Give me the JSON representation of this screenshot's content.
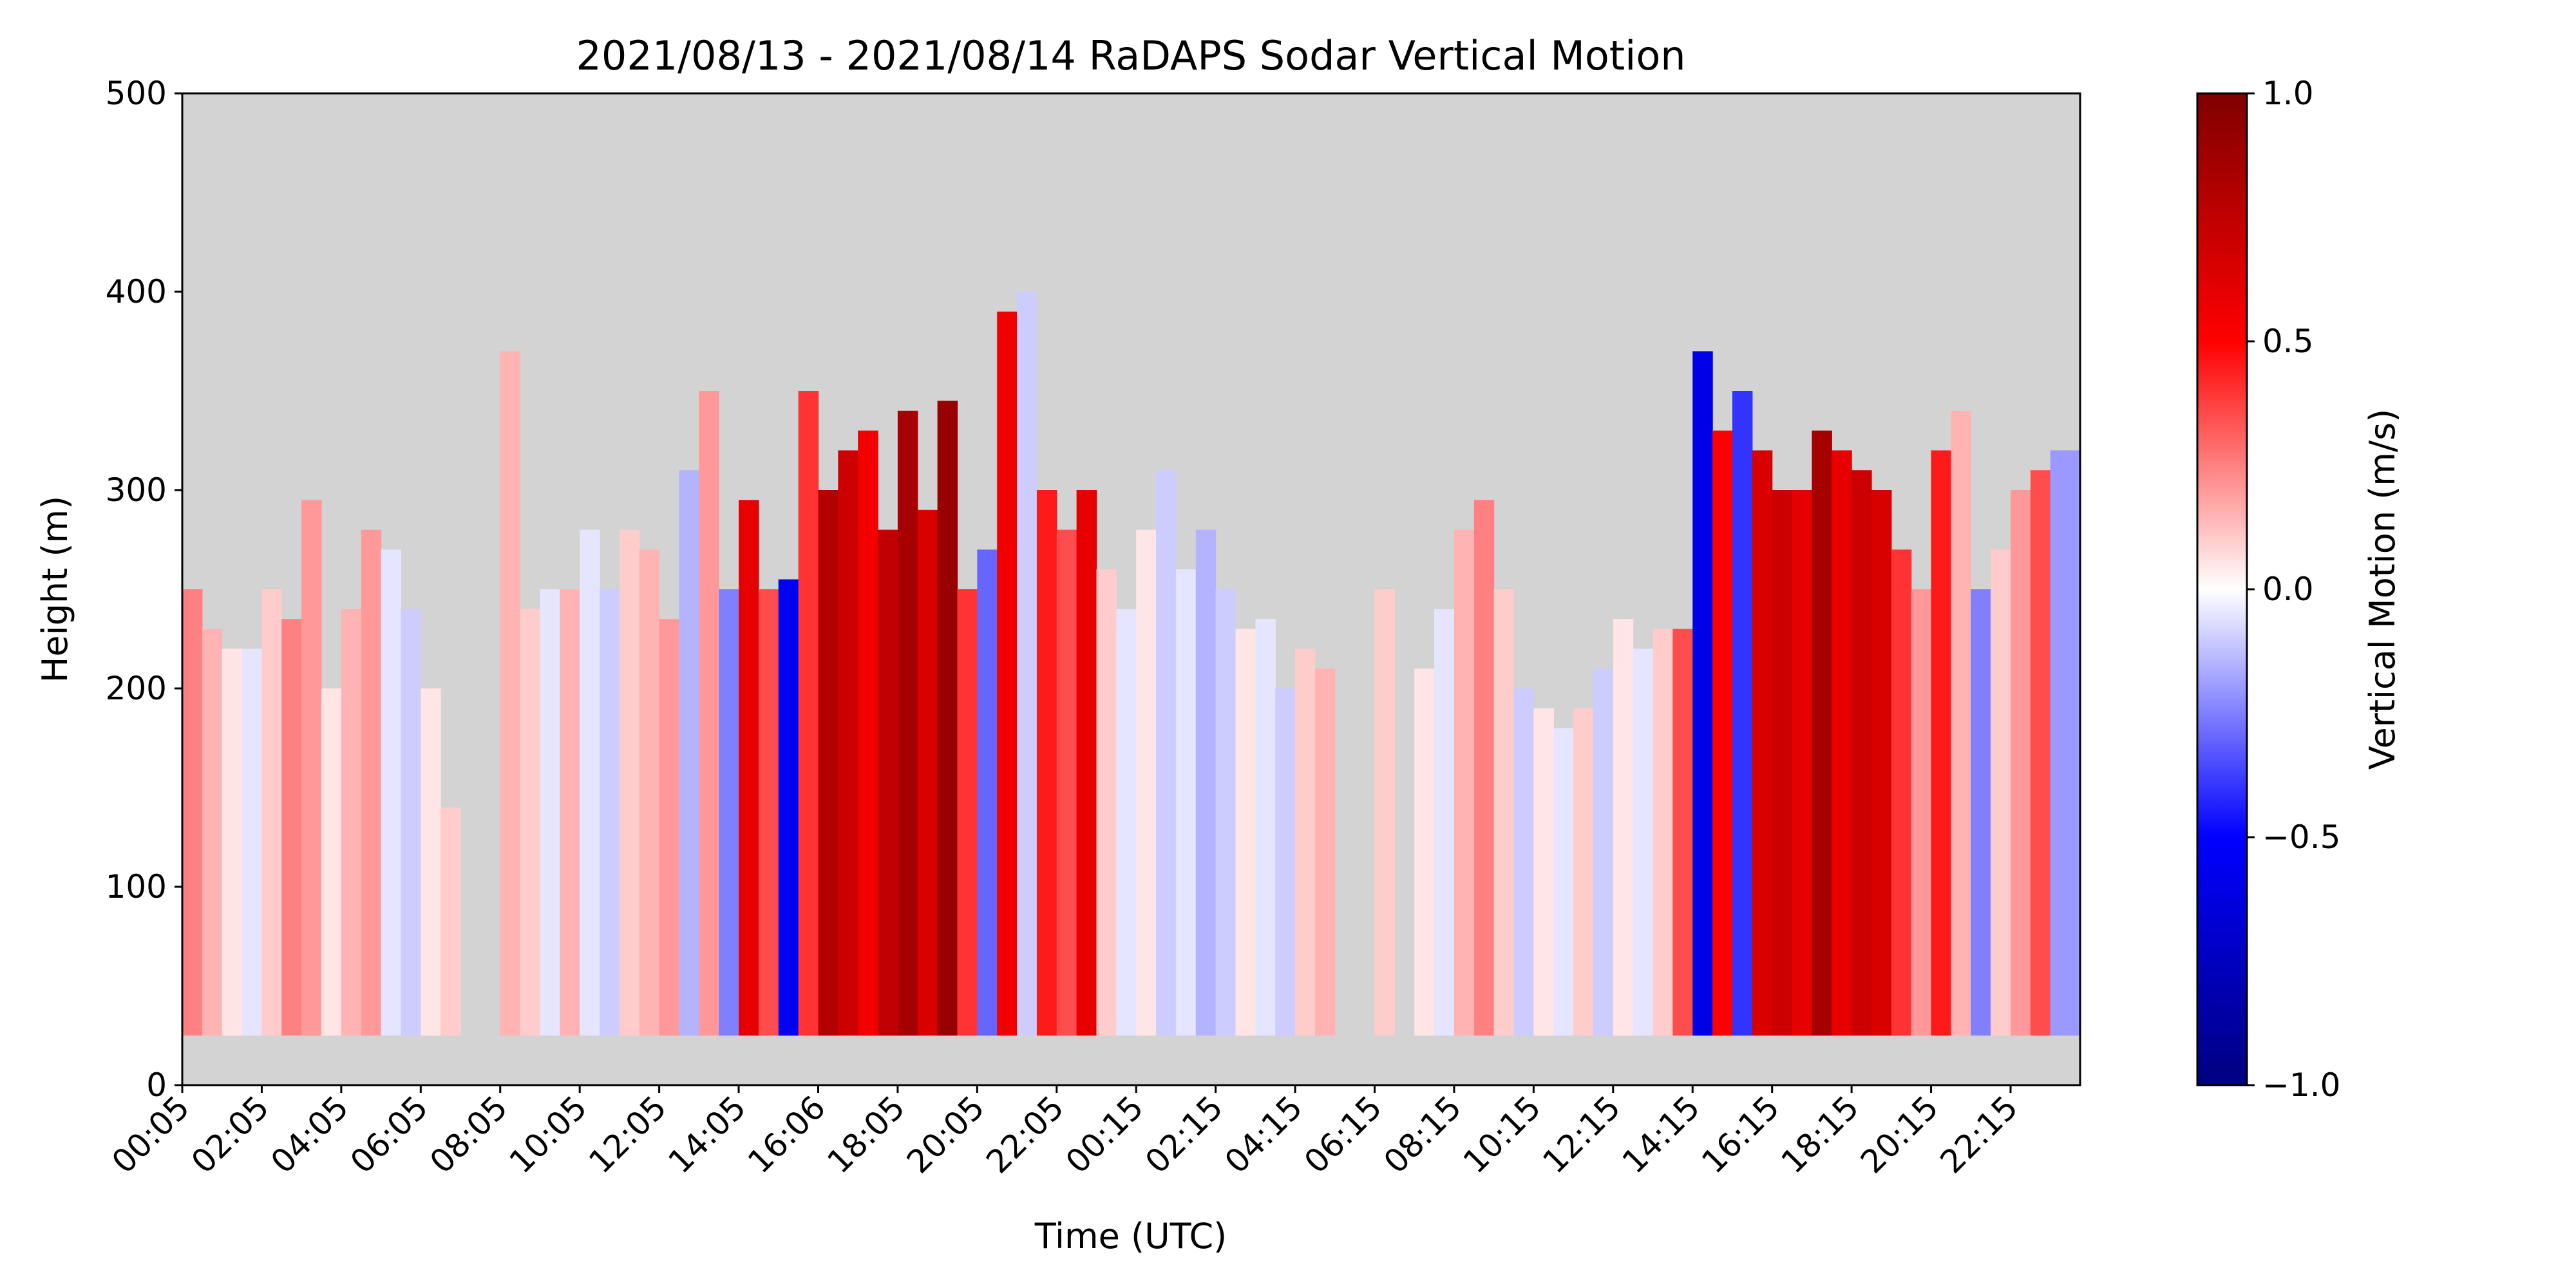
{
  "chart_data": {
    "type": "heatmap",
    "title": "2021/08/13 - 2021/08/14 RaDAPS Sodar Vertical Motion",
    "xlabel": "Time (UTC)",
    "ylabel": "Height (m)",
    "x_ticks": [
      "00:05",
      "02:05",
      "04:05",
      "06:05",
      "08:05",
      "10:05",
      "12:05",
      "14:05",
      "16:06",
      "18:05",
      "20:05",
      "22:05",
      "00:15",
      "02:15",
      "04:15",
      "06:15",
      "08:15",
      "10:15",
      "12:15",
      "14:15",
      "16:15",
      "18:15",
      "20:15",
      "22:15"
    ],
    "x_range_hours": [
      0,
      47.75
    ],
    "ylim": [
      0,
      500
    ],
    "y_ticks": [
      0,
      100,
      200,
      300,
      400,
      500
    ],
    "colorbar": {
      "label": "Vertical Motion (m/s)",
      "range": [
        -1.0,
        1.0
      ],
      "ticks": [
        "1.0",
        "0.5",
        "0.0",
        "−0.5",
        "−1.0"
      ],
      "tick_values": [
        1.0,
        0.5,
        0.0,
        -0.5,
        -1.0
      ],
      "colormap": "seismic"
    },
    "missing_color": "#d3d3d3",
    "data_bottom_height": 25,
    "profiles": [
      {
        "start": 0.0,
        "end": 0.5,
        "top": 250,
        "v": 0.25
      },
      {
        "start": 0.5,
        "end": 1.0,
        "top": 230,
        "v": 0.15
      },
      {
        "start": 1.0,
        "end": 1.5,
        "top": 220,
        "v": 0.05
      },
      {
        "start": 1.5,
        "end": 2.0,
        "top": 220,
        "v": -0.05
      },
      {
        "start": 2.0,
        "end": 2.5,
        "top": 250,
        "v": 0.1
      },
      {
        "start": 2.5,
        "end": 3.0,
        "top": 235,
        "v": 0.25
      },
      {
        "start": 3.0,
        "end": 3.5,
        "top": 295,
        "v": 0.2
      },
      {
        "start": 3.5,
        "end": 4.0,
        "top": 200,
        "v": 0.05
      },
      {
        "start": 4.0,
        "end": 4.5,
        "top": 240,
        "v": 0.15
      },
      {
        "start": 4.5,
        "end": 5.0,
        "top": 280,
        "v": 0.2
      },
      {
        "start": 5.0,
        "end": 5.5,
        "top": 270,
        "v": -0.05
      },
      {
        "start": 5.5,
        "end": 6.0,
        "top": 240,
        "v": -0.1
      },
      {
        "start": 6.0,
        "end": 6.5,
        "top": 200,
        "v": 0.05
      },
      {
        "start": 6.5,
        "end": 7.0,
        "top": 140,
        "v": 0.1
      },
      {
        "start": 8.0,
        "end": 8.5,
        "top": 370,
        "v": 0.15
      },
      {
        "start": 8.5,
        "end": 9.0,
        "top": 240,
        "v": 0.1
      },
      {
        "start": 9.0,
        "end": 9.5,
        "top": 250,
        "v": -0.05
      },
      {
        "start": 9.5,
        "end": 10.0,
        "top": 250,
        "v": 0.15
      },
      {
        "start": 10.0,
        "end": 10.5,
        "top": 280,
        "v": -0.05
      },
      {
        "start": 10.5,
        "end": 11.0,
        "top": 250,
        "v": -0.1
      },
      {
        "start": 11.0,
        "end": 11.5,
        "top": 280,
        "v": 0.1
      },
      {
        "start": 11.5,
        "end": 12.0,
        "top": 270,
        "v": 0.15
      },
      {
        "start": 12.0,
        "end": 12.5,
        "top": 235,
        "v": 0.2
      },
      {
        "start": 12.5,
        "end": 13.0,
        "top": 310,
        "v": -0.15
      },
      {
        "start": 13.0,
        "end": 13.5,
        "top": 350,
        "v": 0.2
      },
      {
        "start": 13.5,
        "end": 14.0,
        "top": 250,
        "v": -0.25
      },
      {
        "start": 14.0,
        "end": 14.5,
        "top": 295,
        "v": 0.6
      },
      {
        "start": 14.5,
        "end": 15.0,
        "top": 250,
        "v": 0.35
      },
      {
        "start": 15.0,
        "end": 15.5,
        "top": 255,
        "v": -0.55
      },
      {
        "start": 15.5,
        "end": 16.0,
        "top": 350,
        "v": 0.4
      },
      {
        "start": 16.0,
        "end": 16.5,
        "top": 300,
        "v": 0.8
      },
      {
        "start": 16.5,
        "end": 17.0,
        "top": 320,
        "v": 0.7
      },
      {
        "start": 17.0,
        "end": 17.5,
        "top": 330,
        "v": 0.55
      },
      {
        "start": 17.5,
        "end": 18.0,
        "top": 280,
        "v": 0.75
      },
      {
        "start": 18.0,
        "end": 18.5,
        "top": 340,
        "v": 0.85
      },
      {
        "start": 18.5,
        "end": 19.0,
        "top": 290,
        "v": 0.65
      },
      {
        "start": 19.0,
        "end": 19.5,
        "top": 345,
        "v": 0.9
      },
      {
        "start": 19.5,
        "end": 20.0,
        "top": 250,
        "v": 0.4
      },
      {
        "start": 20.0,
        "end": 20.5,
        "top": 270,
        "v": -0.3
      },
      {
        "start": 20.5,
        "end": 21.0,
        "top": 390,
        "v": 0.55
      },
      {
        "start": 21.0,
        "end": 21.5,
        "top": 400,
        "v": -0.1
      },
      {
        "start": 21.5,
        "end": 22.0,
        "top": 300,
        "v": 0.45
      },
      {
        "start": 22.0,
        "end": 22.5,
        "top": 280,
        "v": 0.35
      },
      {
        "start": 22.5,
        "end": 23.0,
        "top": 300,
        "v": 0.6
      },
      {
        "start": 23.0,
        "end": 23.5,
        "top": 260,
        "v": 0.1
      },
      {
        "start": 23.5,
        "end": 24.0,
        "top": 240,
        "v": -0.05
      },
      {
        "start": 24.0,
        "end": 24.5,
        "top": 280,
        "v": 0.05
      },
      {
        "start": 24.5,
        "end": 25.0,
        "top": 310,
        "v": -0.1
      },
      {
        "start": 25.0,
        "end": 25.5,
        "top": 260,
        "v": -0.05
      },
      {
        "start": 25.5,
        "end": 26.0,
        "top": 280,
        "v": -0.15
      },
      {
        "start": 26.0,
        "end": 26.5,
        "top": 250,
        "v": -0.1
      },
      {
        "start": 26.5,
        "end": 27.0,
        "top": 230,
        "v": 0.05
      },
      {
        "start": 27.0,
        "end": 27.5,
        "top": 235,
        "v": -0.05
      },
      {
        "start": 27.5,
        "end": 28.0,
        "top": 200,
        "v": -0.1
      },
      {
        "start": 28.0,
        "end": 28.5,
        "top": 220,
        "v": 0.1
      },
      {
        "start": 28.5,
        "end": 29.0,
        "top": 210,
        "v": 0.15
      },
      {
        "start": 30.0,
        "end": 30.5,
        "top": 250,
        "v": 0.1
      },
      {
        "start": 31.0,
        "end": 31.5,
        "top": 210,
        "v": 0.05
      },
      {
        "start": 31.5,
        "end": 32.0,
        "top": 240,
        "v": -0.05
      },
      {
        "start": 32.0,
        "end": 32.5,
        "top": 280,
        "v": 0.15
      },
      {
        "start": 32.5,
        "end": 33.0,
        "top": 295,
        "v": 0.25
      },
      {
        "start": 33.0,
        "end": 33.5,
        "top": 250,
        "v": 0.1
      },
      {
        "start": 33.5,
        "end": 34.0,
        "top": 200,
        "v": -0.1
      },
      {
        "start": 34.0,
        "end": 34.5,
        "top": 190,
        "v": 0.05
      },
      {
        "start": 34.5,
        "end": 35.0,
        "top": 180,
        "v": -0.05
      },
      {
        "start": 35.0,
        "end": 35.5,
        "top": 190,
        "v": 0.1
      },
      {
        "start": 35.5,
        "end": 36.0,
        "top": 210,
        "v": -0.1
      },
      {
        "start": 36.0,
        "end": 36.5,
        "top": 235,
        "v": 0.05
      },
      {
        "start": 36.5,
        "end": 37.0,
        "top": 220,
        "v": -0.05
      },
      {
        "start": 37.0,
        "end": 37.5,
        "top": 230,
        "v": 0.1
      },
      {
        "start": 37.5,
        "end": 38.0,
        "top": 230,
        "v": 0.35
      },
      {
        "start": 38.0,
        "end": 38.5,
        "top": 370,
        "v": -0.6
      },
      {
        "start": 38.5,
        "end": 39.0,
        "top": 330,
        "v": 0.5
      },
      {
        "start": 39.0,
        "end": 39.5,
        "top": 350,
        "v": -0.4
      },
      {
        "start": 39.5,
        "end": 40.0,
        "top": 320,
        "v": 0.65
      },
      {
        "start": 40.0,
        "end": 40.5,
        "top": 300,
        "v": 0.7
      },
      {
        "start": 40.5,
        "end": 41.0,
        "top": 300,
        "v": 0.6
      },
      {
        "start": 41.0,
        "end": 41.5,
        "top": 330,
        "v": 0.85
      },
      {
        "start": 41.5,
        "end": 42.0,
        "top": 320,
        "v": 0.6
      },
      {
        "start": 42.0,
        "end": 42.5,
        "top": 310,
        "v": 0.7
      },
      {
        "start": 42.5,
        "end": 43.0,
        "top": 300,
        "v": 0.65
      },
      {
        "start": 43.0,
        "end": 43.5,
        "top": 270,
        "v": 0.4
      },
      {
        "start": 43.5,
        "end": 44.0,
        "top": 250,
        "v": 0.2
      },
      {
        "start": 44.0,
        "end": 44.5,
        "top": 320,
        "v": 0.45
      },
      {
        "start": 44.5,
        "end": 45.0,
        "top": 340,
        "v": 0.15
      },
      {
        "start": 45.0,
        "end": 45.5,
        "top": 250,
        "v": -0.25
      },
      {
        "start": 45.5,
        "end": 46.0,
        "top": 270,
        "v": 0.1
      },
      {
        "start": 46.0,
        "end": 46.5,
        "top": 300,
        "v": 0.2
      },
      {
        "start": 46.5,
        "end": 47.0,
        "top": 310,
        "v": 0.35
      },
      {
        "start": 47.0,
        "end": 47.75,
        "top": 320,
        "v": -0.2
      }
    ]
  }
}
